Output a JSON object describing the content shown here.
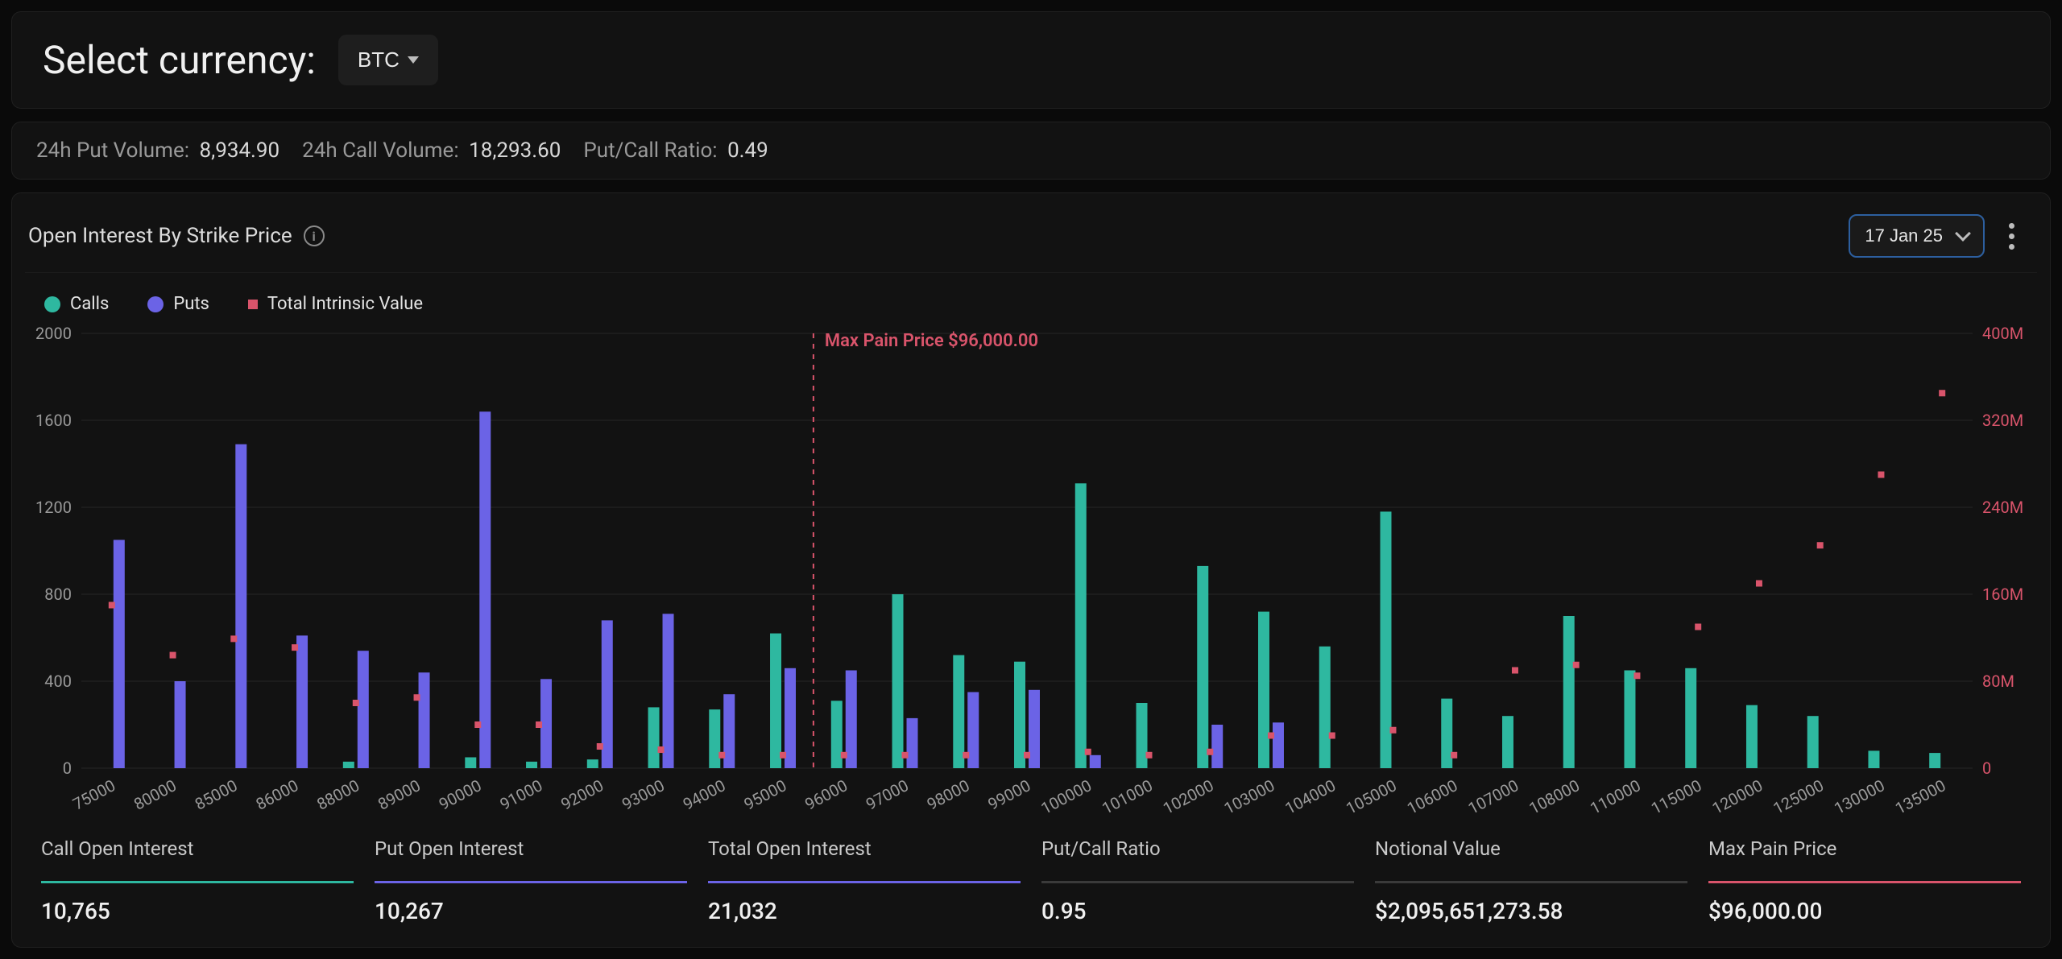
{
  "selector": {
    "label": "Select currency:",
    "currency": "BTC"
  },
  "stats": {
    "put_vol_label": "24h Put Volume:",
    "put_vol": "8,934.90",
    "call_vol_label": "24h Call Volume:",
    "call_vol": "18,293.60",
    "ratio_label": "Put/Call Ratio:",
    "ratio": "0.49"
  },
  "chart": {
    "title": "Open Interest By Strike Price",
    "date_selected": "17 Jan 25",
    "legend": {
      "calls": "Calls",
      "puts": "Puts",
      "intrinsic": "Total Intrinsic Value"
    },
    "colors": {
      "calls": "#2eb8a0",
      "puts": "#6b63e6",
      "intrinsic": "#d9546b",
      "grid": "#1f1f1f",
      "background": "#121212",
      "axis_text": "#9a9a9a",
      "axis_text_right": "#d9546b"
    },
    "y_left": {
      "min": 0,
      "max": 2000,
      "step": 400
    },
    "y_right": {
      "min": 0,
      "max": 400,
      "step": 80,
      "suffix": "M"
    },
    "max_pain": {
      "label": "Max Pain Price $96,000.00",
      "strike": 96000
    },
    "strikes": [
      75000,
      80000,
      85000,
      86000,
      88000,
      89000,
      90000,
      91000,
      92000,
      93000,
      94000,
      95000,
      96000,
      97000,
      98000,
      99000,
      100000,
      101000,
      102000,
      103000,
      104000,
      105000,
      106000,
      107000,
      108000,
      110000,
      115000,
      120000,
      125000,
      130000,
      135000
    ],
    "calls": [
      0,
      0,
      0,
      0,
      30,
      0,
      50,
      30,
      40,
      280,
      270,
      620,
      310,
      800,
      520,
      490,
      1310,
      300,
      930,
      720,
      560,
      1180,
      320,
      240,
      700,
      450,
      460,
      290,
      240,
      80,
      70
    ],
    "puts": [
      1050,
      400,
      1490,
      610,
      540,
      440,
      1640,
      410,
      680,
      710,
      340,
      460,
      450,
      230,
      350,
      360,
      60,
      0,
      200,
      210,
      0,
      0,
      0,
      0,
      0,
      0,
      0,
      0,
      0,
      0,
      0
    ],
    "intrinsic": [
      150,
      104,
      119,
      111,
      60,
      65,
      40,
      40,
      20,
      17,
      12,
      12,
      12,
      12,
      12,
      12,
      15,
      12,
      15,
      30,
      30,
      35,
      12,
      90,
      95,
      85,
      130,
      170,
      205,
      270,
      345
    ],
    "bar_half_width": 7
  },
  "summary": [
    {
      "title": "Call Open Interest",
      "value": "10,765",
      "rule_color": "#2eb8a0"
    },
    {
      "title": "Put Open Interest",
      "value": "10,267",
      "rule_color": "#6b63e6"
    },
    {
      "title": "Total Open Interest",
      "value": "21,032",
      "rule_color": "#6b63e6"
    },
    {
      "title": "Put/Call Ratio",
      "value": "0.95",
      "rule_color": "#3a3a3a"
    },
    {
      "title": "Notional Value",
      "value": "$2,095,651,273.58",
      "rule_color": "#3a3a3a"
    },
    {
      "title": "Max Pain Price",
      "value": "$96,000.00",
      "rule_color": "#d9546b"
    }
  ]
}
